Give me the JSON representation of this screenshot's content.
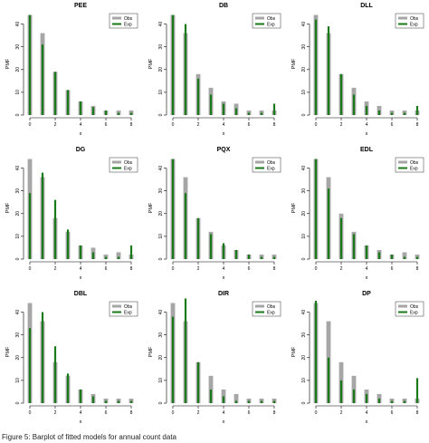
{
  "caption": "Figure 5: Barplot of fitted models for annual count data",
  "legend": {
    "obs": "Obs",
    "exp": "Exp"
  },
  "colors": {
    "obs": "#a6a6a6",
    "exp": "#1a7a1a",
    "axis": "#000000"
  },
  "chart_data": [
    {
      "type": "bar",
      "title": "PEE",
      "xlabel": "x",
      "ylabel": "PMF",
      "x": [
        0,
        1,
        2,
        3,
        4,
        5,
        6,
        7,
        8
      ],
      "xticks": [
        0,
        2,
        4,
        6,
        8
      ],
      "yticks": [
        0,
        10,
        20,
        30,
        40
      ],
      "ylim": [
        0,
        45
      ],
      "legend": "top-right",
      "series": [
        {
          "name": "Obs",
          "values": [
            44,
            36,
            19,
            11,
            6,
            4,
            2,
            2,
            2
          ]
        },
        {
          "name": "Exp",
          "values": [
            44,
            31,
            19,
            11,
            6,
            3.5,
            2,
            1,
            1
          ]
        }
      ]
    },
    {
      "type": "bar",
      "title": "DB",
      "xlabel": "x",
      "ylabel": "PMF",
      "x": [
        0,
        1,
        2,
        3,
        4,
        5,
        6,
        7,
        8
      ],
      "xticks": [
        0,
        2,
        4,
        6,
        8
      ],
      "yticks": [
        0,
        10,
        20,
        30,
        40
      ],
      "ylim": [
        0,
        45
      ],
      "legend": "top-right",
      "series": [
        {
          "name": "Obs",
          "values": [
            44,
            36,
            18,
            12,
            6,
            5,
            2,
            2,
            2
          ]
        },
        {
          "name": "Exp",
          "values": [
            44,
            40,
            16,
            9,
            5,
            3,
            1,
            1,
            5
          ]
        }
      ]
    },
    {
      "type": "bar",
      "title": "DLL",
      "xlabel": "x",
      "ylabel": "PMF",
      "x": [
        0,
        1,
        2,
        3,
        4,
        5,
        6,
        7,
        8
      ],
      "xticks": [
        0,
        2,
        4,
        6,
        8
      ],
      "yticks": [
        0,
        10,
        20,
        30,
        40
      ],
      "ylim": [
        0,
        45
      ],
      "legend": "top-right",
      "series": [
        {
          "name": "Obs",
          "values": [
            44,
            36,
            18,
            12,
            6,
            4,
            2,
            2,
            2
          ]
        },
        {
          "name": "Exp",
          "values": [
            42,
            39,
            18,
            9,
            4,
            2,
            1,
            1,
            4
          ]
        }
      ]
    },
    {
      "type": "bar",
      "title": "DG",
      "xlabel": "x",
      "ylabel": "PMF",
      "x": [
        0,
        1,
        2,
        3,
        4,
        5,
        6,
        7,
        8
      ],
      "xticks": [
        0,
        2,
        4,
        6,
        8
      ],
      "yticks": [
        0,
        10,
        20,
        30,
        40
      ],
      "ylim": [
        0,
        45
      ],
      "legend": "top-right",
      "series": [
        {
          "name": "Obs",
          "values": [
            44,
            36,
            18,
            12,
            6,
            5,
            2,
            3,
            2
          ]
        },
        {
          "name": "Exp",
          "values": [
            29,
            38,
            26,
            13,
            6,
            3,
            1,
            1,
            6
          ]
        }
      ]
    },
    {
      "type": "bar",
      "title": "PQX",
      "xlabel": "x",
      "ylabel": "PMF",
      "x": [
        0,
        1,
        2,
        3,
        4,
        5,
        6,
        7,
        8
      ],
      "xticks": [
        0,
        2,
        4,
        6,
        8
      ],
      "yticks": [
        0,
        10,
        20,
        30,
        40
      ],
      "ylim": [
        0,
        45
      ],
      "legend": "top-right",
      "series": [
        {
          "name": "Obs",
          "values": [
            44,
            36,
            18,
            12,
            6,
            4,
            2,
            2,
            2
          ]
        },
        {
          "name": "Exp",
          "values": [
            44,
            29,
            18,
            11,
            7,
            4,
            2,
            1,
            1
          ]
        }
      ]
    },
    {
      "type": "bar",
      "title": "EDL",
      "xlabel": "x",
      "ylabel": "PMF",
      "x": [
        0,
        1,
        2,
        3,
        4,
        5,
        6,
        7,
        8
      ],
      "xticks": [
        0,
        2,
        4,
        6,
        8
      ],
      "yticks": [
        0,
        10,
        20,
        30,
        40
      ],
      "ylim": [
        0,
        45
      ],
      "legend": "top-right",
      "series": [
        {
          "name": "Obs",
          "values": [
            44,
            36,
            20,
            12,
            6,
            4,
            2,
            3,
            2
          ]
        },
        {
          "name": "Exp",
          "values": [
            44,
            31,
            18,
            11,
            6,
            3,
            2,
            1,
            1
          ]
        }
      ]
    },
    {
      "type": "bar",
      "title": "DBL",
      "xlabel": "x",
      "ylabel": "PMF",
      "x": [
        0,
        1,
        2,
        3,
        4,
        5,
        6,
        7,
        8
      ],
      "xticks": [
        0,
        2,
        4,
        6,
        8
      ],
      "yticks": [
        0,
        10,
        20,
        30,
        40
      ],
      "ylim": [
        0,
        45
      ],
      "legend": "top-right",
      "series": [
        {
          "name": "Obs",
          "values": [
            44,
            36,
            18,
            12,
            6,
            4,
            2,
            2,
            2
          ]
        },
        {
          "name": "Exp",
          "values": [
            33,
            40,
            25,
            13,
            6,
            3,
            1,
            1,
            1
          ]
        }
      ]
    },
    {
      "type": "bar",
      "title": "DIR",
      "xlabel": "x",
      "ylabel": "PMF",
      "x": [
        0,
        1,
        2,
        3,
        4,
        5,
        6,
        7,
        8
      ],
      "xticks": [
        0,
        2,
        4,
        6,
        8
      ],
      "yticks": [
        0,
        10,
        20,
        30,
        40
      ],
      "ylim": [
        0,
        45
      ],
      "legend": "top-right",
      "series": [
        {
          "name": "Obs",
          "values": [
            44,
            36,
            18,
            12,
            6,
            4,
            2,
            2,
            2
          ]
        },
        {
          "name": "Exp",
          "values": [
            38,
            46,
            18,
            6,
            3,
            1,
            1,
            1,
            1
          ]
        }
      ]
    },
    {
      "type": "bar",
      "title": "DP",
      "xlabel": "x",
      "ylabel": "PMF",
      "x": [
        0,
        1,
        2,
        3,
        4,
        5,
        6,
        7,
        8
      ],
      "xticks": [
        0,
        2,
        4,
        6,
        8
      ],
      "yticks": [
        0,
        10,
        20,
        30,
        40
      ],
      "ylim": [
        0,
        45
      ],
      "legend": "top-right",
      "series": [
        {
          "name": "Obs",
          "values": [
            44,
            36,
            18,
            12,
            6,
            4,
            2,
            2,
            2
          ]
        },
        {
          "name": "Exp",
          "values": [
            45,
            20,
            10,
            6,
            4,
            2,
            1,
            1,
            11
          ]
        }
      ]
    }
  ]
}
